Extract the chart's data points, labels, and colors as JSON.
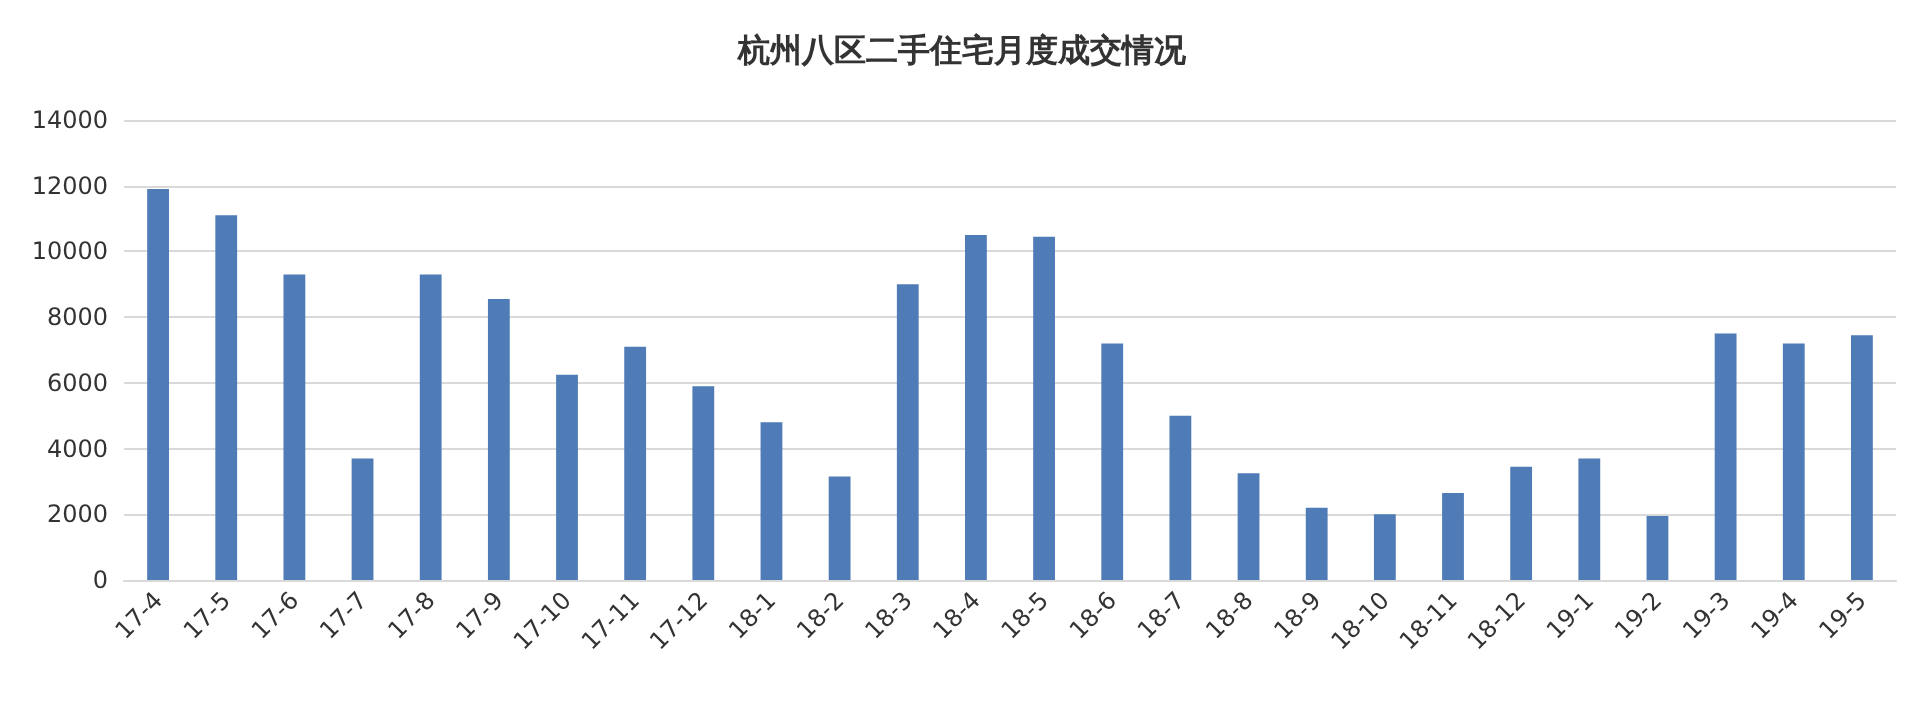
{
  "chart_data": {
    "type": "bar",
    "title": "杭州八区二手住宅月度成交情况",
    "categories": [
      "17-4",
      "17-5",
      "17-6",
      "17-7",
      "17-8",
      "17-9",
      "17-10",
      "17-11",
      "17-12",
      "18-1",
      "18-2",
      "18-3",
      "18-4",
      "18-5",
      "18-6",
      "18-7",
      "18-8",
      "18-9",
      "18-10",
      "18-11",
      "18-12",
      "19-1",
      "19-2",
      "19-3",
      "19-4",
      "19-5"
    ],
    "values": [
      11900,
      11100,
      9300,
      3700,
      9300,
      8550,
      6250,
      7100,
      5900,
      4800,
      3150,
      9000,
      10500,
      10450,
      7200,
      5000,
      3250,
      2200,
      2000,
      2650,
      3450,
      3700,
      1950,
      7500,
      7200,
      7450
    ],
    "color": "#4f7bb6",
    "ylim": [
      0,
      14000
    ],
    "yticks": [
      0,
      2000,
      4000,
      6000,
      8000,
      10000,
      12000,
      14000
    ],
    "grid": "y"
  }
}
